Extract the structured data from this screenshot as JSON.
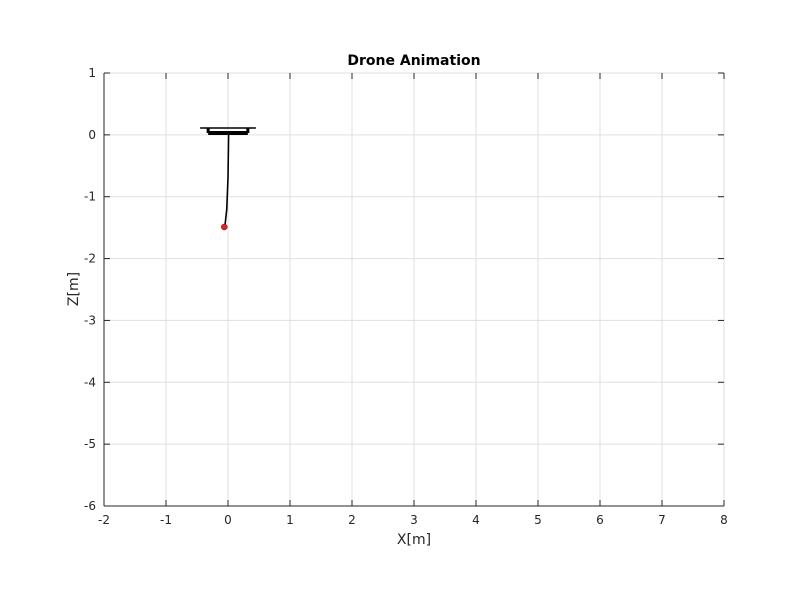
{
  "chart_data": {
    "type": "line",
    "title": "Drone Animation",
    "xlabel": "X[m]",
    "ylabel": "Z[m]",
    "xlim": [
      -2,
      8
    ],
    "ylim": [
      -6,
      1
    ],
    "xticks": [
      -2,
      -1,
      0,
      1,
      2,
      3,
      4,
      5,
      6,
      7,
      8
    ],
    "yticks": [
      -6,
      -5,
      -4,
      -3,
      -2,
      -1,
      0,
      1
    ],
    "xtick_labels": [
      "-2",
      "-1",
      "0",
      "1",
      "2",
      "3",
      "4",
      "5",
      "6",
      "7",
      "8"
    ],
    "ytick_labels": [
      "-6",
      "-5",
      "-4",
      "-3",
      "-2",
      "-1",
      "0",
      "1"
    ],
    "grid": true,
    "series": [
      {
        "kind": "drone-frame-rotor",
        "color": "#000000",
        "x": [
          -0.45,
          0.45
        ],
        "y": [
          0.11,
          0.11
        ]
      },
      {
        "kind": "drone-frame-body",
        "color": "#000000",
        "x": [
          -0.32,
          0.32
        ],
        "y": [
          0.03,
          0.03
        ]
      },
      {
        "kind": "drone-frame-struts",
        "color": "#000000",
        "x": [
          -0.32,
          -0.32,
          0.32,
          0.32
        ],
        "y": [
          0.03,
          0.11,
          0.03,
          0.11
        ]
      },
      {
        "kind": "tether",
        "color": "#000000",
        "x": [
          0.01,
          0.0,
          -0.02,
          -0.05
        ],
        "y": [
          0.02,
          -0.7,
          -1.2,
          -1.48
        ]
      },
      {
        "kind": "payload",
        "color": "#d62728",
        "x": [
          -0.06
        ],
        "y": [
          -1.49
        ]
      }
    ]
  }
}
